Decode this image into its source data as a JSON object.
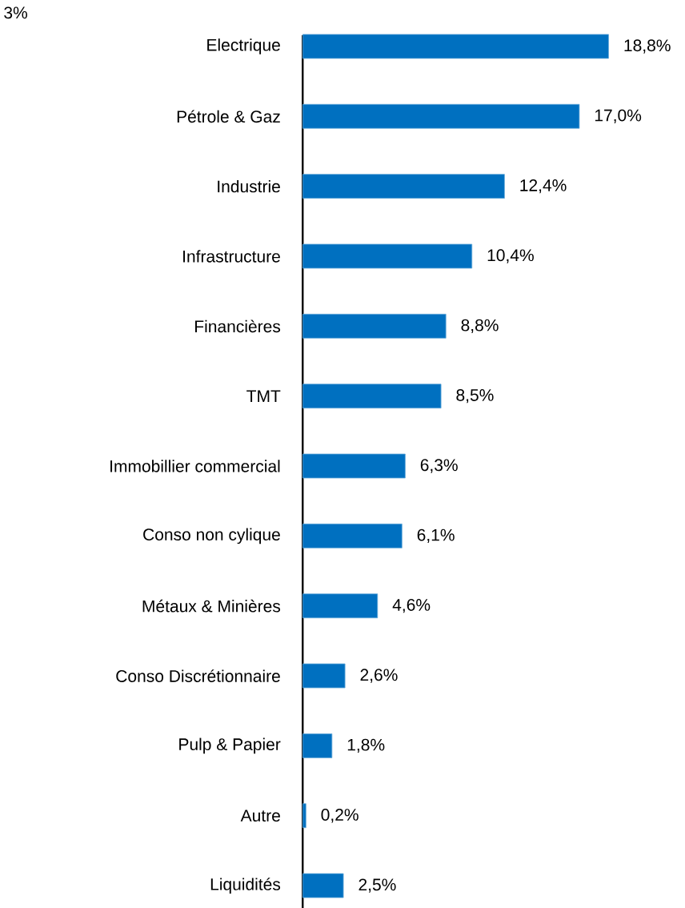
{
  "chart_data": {
    "type": "bar",
    "orientation": "horizontal",
    "categories": [
      "Electrique",
      "Pétrole & Gaz",
      "Industrie",
      "Infrastructure",
      "Financières",
      "TMT",
      "Immobillier commercial",
      "Conso non cylique",
      "Métaux & Minières",
      "Conso Discrétionnaire",
      "Pulp & Papier",
      "Autre",
      "Liquidités"
    ],
    "values": [
      18.8,
      17.0,
      12.4,
      10.4,
      8.8,
      8.5,
      6.3,
      6.1,
      4.6,
      2.6,
      1.8,
      0.2,
      2.5
    ],
    "value_labels": [
      "18,8%",
      "17,0%",
      "12,4%",
      "10,4%",
      "8,8%",
      "8,5%",
      "6,3%",
      "6,1%",
      "4,6%",
      "2,6%",
      "1,8%",
      "0,2%",
      "2,5%"
    ],
    "color": "#0070c0",
    "annotations": [
      "3%"
    ]
  }
}
